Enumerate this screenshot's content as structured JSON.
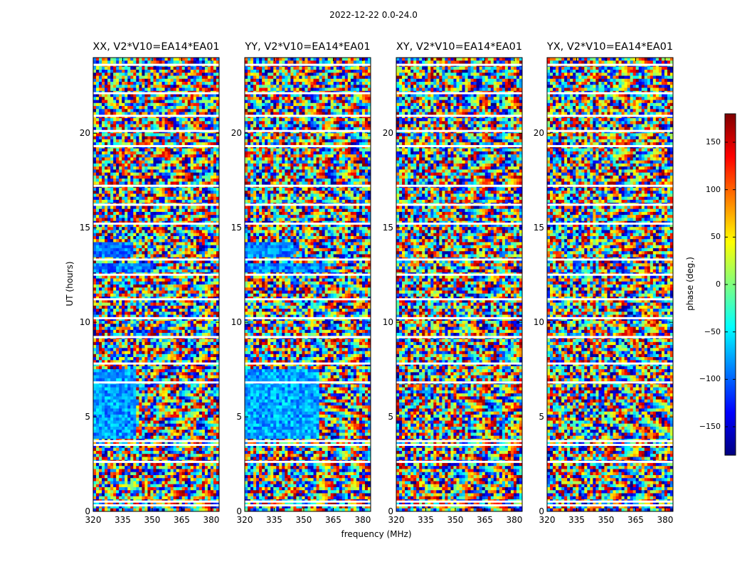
{
  "figure": {
    "suptitle": "2022-12-22 0.0-24.0",
    "ylabel": "UT (hours)",
    "xlabel": "frequency (MHz)",
    "colorbar": {
      "label": "phase (deg.)",
      "range": [
        -180,
        180
      ],
      "ticks": [
        150,
        100,
        50,
        0,
        -50,
        -100,
        -150
      ],
      "tick_labels": [
        "150",
        "100",
        "50",
        "0",
        "−50",
        "−100",
        "−150"
      ],
      "colormap": "jet",
      "colors": [
        "#00007f",
        "#0000ff",
        "#007fff",
        "#00ffff",
        "#7fff7f",
        "#ffff00",
        "#ff7f00",
        "#ff0000",
        "#7f0000"
      ]
    }
  },
  "chart_data": [
    {
      "type": "heatmap",
      "title": "XX, V2*V10=EA14*EA01",
      "xlabel": "",
      "ylabel": "UT (hours)",
      "xlim": [
        320,
        384
      ],
      "ylim": [
        0,
        24
      ],
      "xticks": [
        320,
        335,
        350,
        365,
        380
      ],
      "yticks": [
        0,
        5,
        10,
        15,
        20
      ],
      "value_label": "phase (deg.)",
      "value_range": [
        -180,
        180
      ],
      "coherent_regions": [
        {
          "t": [
            3.9,
            7.6
          ],
          "f": [
            320,
            342
          ],
          "phase_deg": -80
        },
        {
          "t": [
            13.4,
            14.3
          ],
          "f": [
            320,
            340
          ],
          "phase_deg": -90
        },
        {
          "t": [
            12.6,
            13.1
          ],
          "f": [
            320,
            350
          ],
          "phase_deg": -95
        }
      ],
      "flagged_hours": [
        0.3,
        0.5,
        2.6,
        3.5,
        3.7,
        6.8,
        7.8,
        9.2,
        10.2,
        11.2,
        12.5,
        13.3,
        15.2,
        16.2,
        17.2,
        19.3,
        20.1,
        20.9,
        22.1,
        23.6
      ]
    },
    {
      "type": "heatmap",
      "title": "YY, V2*V10=EA14*EA01",
      "xlabel": "frequency (MHz)",
      "ylabel": "",
      "xlim": [
        320,
        384
      ],
      "ylim": [
        0,
        24
      ],
      "xticks": [
        320,
        335,
        350,
        365,
        380
      ],
      "yticks": [
        0,
        5,
        10,
        15,
        20
      ],
      "value_label": "phase (deg.)",
      "value_range": [
        -180,
        180
      ],
      "coherent_regions": [
        {
          "t": [
            3.9,
            7.6
          ],
          "f": [
            320,
            358
          ],
          "phase_deg": -75
        },
        {
          "t": [
            13.4,
            14.3
          ],
          "f": [
            320,
            345
          ],
          "phase_deg": -85
        },
        {
          "t": [
            12.6,
            13.1
          ],
          "f": [
            320,
            360
          ],
          "phase_deg": -90
        }
      ],
      "flagged_hours": [
        0.3,
        0.5,
        2.6,
        3.5,
        3.7,
        6.8,
        7.8,
        9.2,
        10.2,
        11.2,
        12.5,
        13.3,
        15.2,
        16.2,
        17.2,
        19.3,
        20.1,
        20.9,
        22.1,
        23.6
      ]
    },
    {
      "type": "heatmap",
      "title": "XY, V2*V10=EA14*EA01",
      "xlabel": "",
      "ylabel": "",
      "xlim": [
        320,
        384
      ],
      "ylim": [
        0,
        24
      ],
      "xticks": [
        320,
        335,
        350,
        365,
        380
      ],
      "yticks": [
        0,
        5,
        10,
        15,
        20
      ],
      "value_label": "phase (deg.)",
      "value_range": [
        -180,
        180
      ],
      "coherent_regions": [],
      "flagged_hours": [
        0.3,
        0.5,
        2.6,
        3.5,
        3.7,
        6.8,
        7.8,
        9.2,
        10.2,
        11.2,
        12.5,
        13.3,
        15.2,
        16.2,
        17.2,
        19.3,
        20.1,
        20.9,
        22.1,
        23.6
      ]
    },
    {
      "type": "heatmap",
      "title": "YX, V2*V10=EA14*EA01",
      "xlabel": "",
      "ylabel": "",
      "xlim": [
        320,
        384
      ],
      "ylim": [
        0,
        24
      ],
      "xticks": [
        320,
        335,
        350,
        365,
        380
      ],
      "yticks": [
        0,
        5,
        10,
        15,
        20
      ],
      "value_label": "phase (deg.)",
      "value_range": [
        -180,
        180
      ],
      "coherent_regions": [],
      "flagged_hours": [
        0.3,
        0.5,
        2.6,
        3.5,
        3.7,
        6.8,
        7.8,
        9.2,
        10.2,
        11.2,
        12.5,
        13.3,
        15.2,
        16.2,
        17.2,
        19.3,
        20.1,
        20.9,
        22.1,
        23.6
      ]
    }
  ]
}
